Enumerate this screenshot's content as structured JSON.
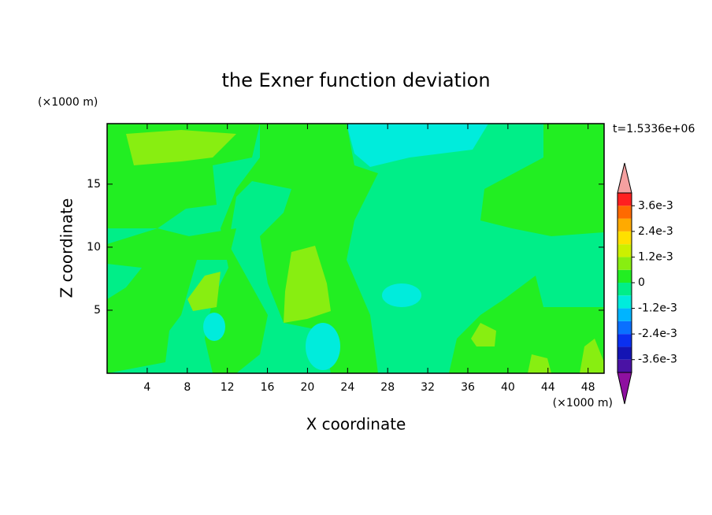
{
  "chart_data": {
    "type": "contour",
    "title": "the Exner function deviation",
    "x_label": "X coordinate",
    "y_label": "Z coordinate",
    "x_unit": "(×1000 m)",
    "y_unit": "(×1000 m)",
    "time_label": "t=1.5336e+06",
    "xlim": [
      0,
      49.6
    ],
    "ylim": [
      0,
      19.8
    ],
    "xticks": [
      4,
      8,
      12,
      16,
      20,
      24,
      28,
      32,
      36,
      40,
      44,
      48
    ],
    "yticks": [
      5,
      10,
      15
    ],
    "colorbar": {
      "lim": [
        -0.0042,
        0.0042
      ],
      "colors": [
        "#4a12a4",
        "#1414b4",
        "#0a30f0",
        "#0a70ff",
        "#00b4ff",
        "#00ecdc",
        "#00ee88",
        "#22ee22",
        "#88ee11",
        "#ccf000",
        "#ffe000",
        "#ffaa00",
        "#ff6a00",
        "#ff2020"
      ],
      "under_color": "#8e10a0",
      "over_color": "#f5a0a0",
      "ticks": [
        {
          "value": 0.0036,
          "label": "3.6e-3"
        },
        {
          "value": 0.0024,
          "label": "2.4e-3"
        },
        {
          "value": 0.0012,
          "label": "1.2e-3"
        },
        0,
        {
          "value": -0.0012,
          "label": "-1.2e-3"
        },
        {
          "value": -0.0024,
          "label": "-2.4e-3"
        },
        {
          "value": -0.0036,
          "label": "-3.6e-3"
        }
      ]
    }
  }
}
